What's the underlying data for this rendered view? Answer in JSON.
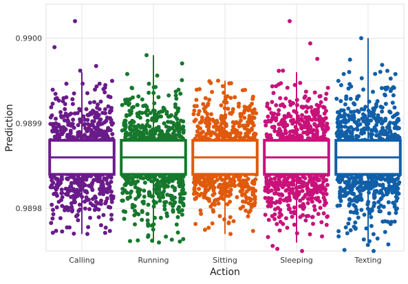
{
  "chart_data": {
    "type": "box-jitter",
    "xlabel": "Action",
    "ylabel": "Prediction",
    "categories": [
      "Calling",
      "Running",
      "Sitting",
      "Sleeping",
      "Texting"
    ],
    "colors": [
      "#6a1b8a",
      "#16782c",
      "#e05a0c",
      "#c8127a",
      "#115fa8"
    ],
    "yticks": [
      0.9898,
      0.9899,
      0.99
    ],
    "ytick_labels": [
      "0.9898",
      "0.9899",
      "0.9900"
    ],
    "ylim": [
      0.98975,
      0.99004
    ],
    "grid": true,
    "series": [
      {
        "category": "Calling",
        "q1": 0.98984,
        "median": 0.98986,
        "q3": 0.98988,
        "whisker_low": 0.98977,
        "whisker_high": 0.98996,
        "min": 0.98977,
        "max": 0.99002,
        "spread": 3.4e-05
      },
      {
        "category": "Running",
        "q1": 0.98984,
        "median": 0.98986,
        "q3": 0.98988,
        "whisker_low": 0.98976,
        "whisker_high": 0.98998,
        "min": 0.98976,
        "max": 0.98998,
        "spread": 3.3e-05
      },
      {
        "category": "Sitting",
        "q1": 0.98984,
        "median": 0.98986,
        "q3": 0.98988,
        "whisker_low": 0.98977,
        "whisker_high": 0.98995,
        "min": 0.98977,
        "max": 0.98995,
        "spread": 3.2e-05
      },
      {
        "category": "Sleeping",
        "q1": 0.98984,
        "median": 0.98986,
        "q3": 0.98988,
        "whisker_low": 0.98976,
        "whisker_high": 0.98996,
        "min": 0.98975,
        "max": 0.99002,
        "spread": 3.5e-05
      },
      {
        "category": "Texting",
        "q1": 0.98984,
        "median": 0.98986,
        "q3": 0.98988,
        "whisker_low": 0.98976,
        "whisker_high": 0.99,
        "min": 0.98975,
        "max": 0.99,
        "spread": 3.6e-05
      }
    ]
  }
}
